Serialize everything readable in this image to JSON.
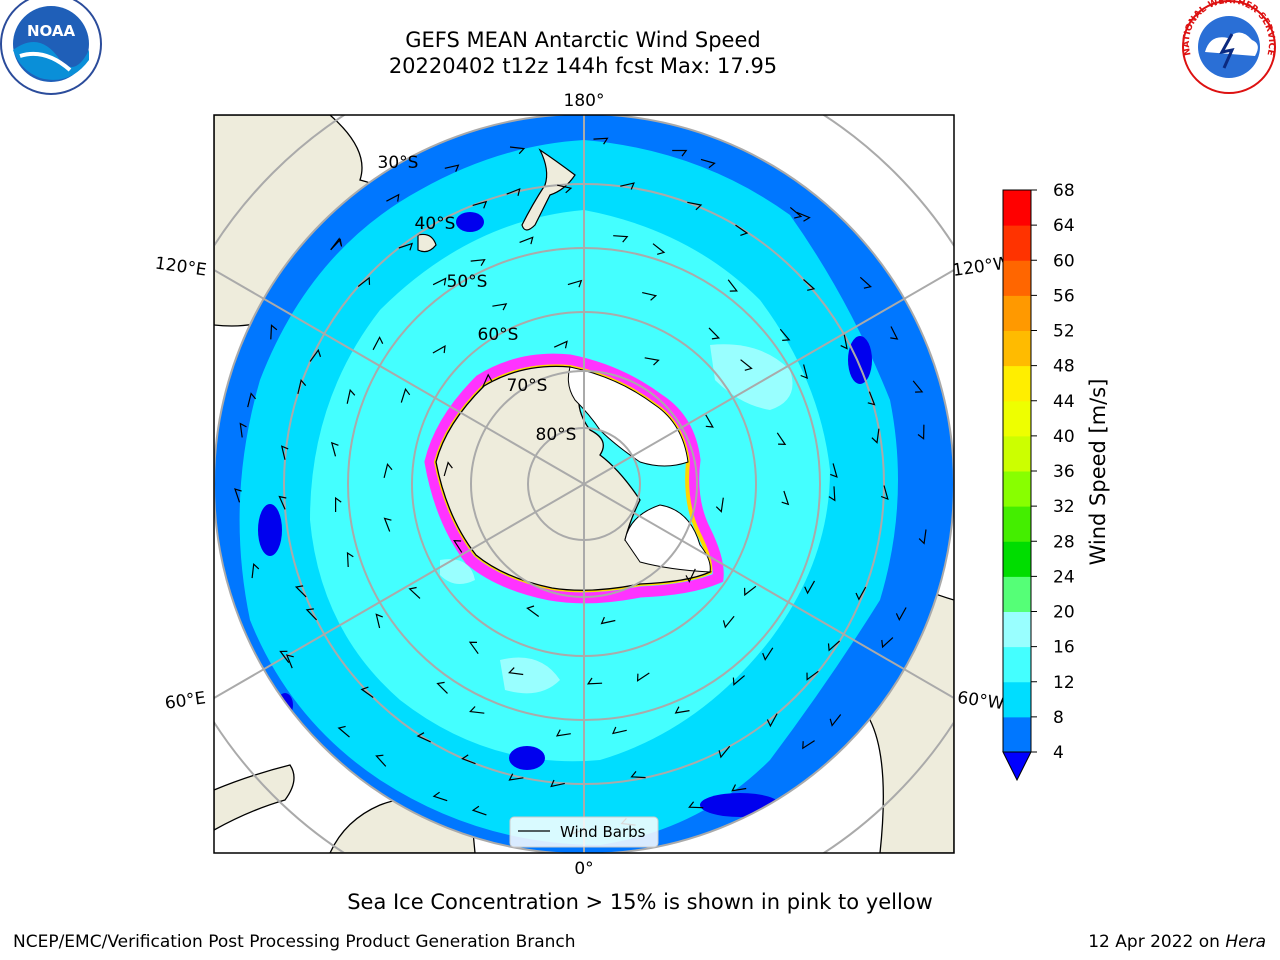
{
  "title": {
    "line1": "GEFS MEAN Antarctic Wind Speed",
    "line2": "20220402 t12z 144h fcst   Max: 17.95"
  },
  "map": {
    "projection": "south-polar-stereographic",
    "lon_labels": [
      "180°",
      "120°E",
      "120°W",
      "60°E",
      "60°W",
      "0°"
    ],
    "lat_labels": [
      "30°S",
      "40°S",
      "50°S",
      "60°S",
      "70°S",
      "80°S"
    ],
    "legend_label": "Wind Barbs",
    "land_color": "#eeecdc",
    "ice_sheet_color": "#ffffff",
    "sea_ice_colors": [
      "#ff33ff",
      "#ffd700"
    ]
  },
  "colorbar": {
    "title": "Wind Speed [m/s]",
    "ticks": [
      "4",
      "8",
      "12",
      "16",
      "20",
      "24",
      "28",
      "32",
      "36",
      "40",
      "44",
      "48",
      "52",
      "56",
      "60",
      "64",
      "68"
    ],
    "colors": [
      "#0000ff",
      "#0077ff",
      "#00ddff",
      "#44ffff",
      "#99ffff",
      "#55ff77",
      "#00dd00",
      "#44ee00",
      "#88ff00",
      "#ccff00",
      "#eeff00",
      "#ffee00",
      "#ffbb00",
      "#ff9900",
      "#ff6600",
      "#ff3300",
      "#ff0000"
    ]
  },
  "note": "Sea Ice Concentration > 15% is shown in pink to yellow",
  "footer": {
    "left": "NCEP/EMC/Verification Post Processing Product Generation Branch",
    "right_date": "12 Apr 2022 on ",
    "right_host": "Hera"
  },
  "logos": {
    "noaa_text": "NOAA",
    "nws_text": "NATIONAL WEATHER SERVICE"
  }
}
